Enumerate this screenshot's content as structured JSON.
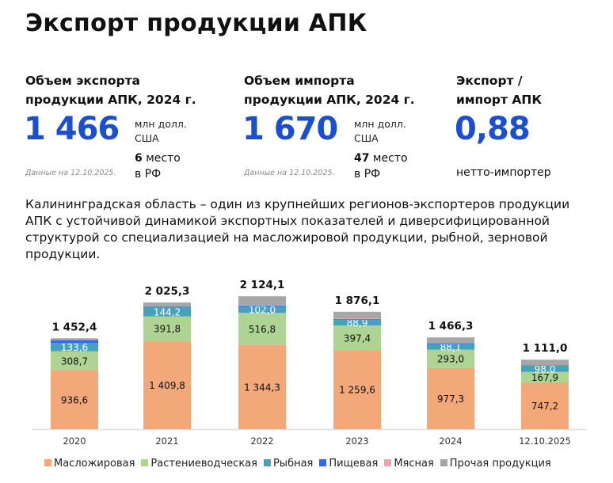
{
  "title": "Экспорт продукции АПК",
  "kpis": [
    {
      "heading_1": "Объем экспорта",
      "heading_2": "продукции АПК, 2024 г.",
      "value": "1 466",
      "unit_1": "млн долл.",
      "unit_2": "США",
      "rank_num": "6",
      "rank_1": " место",
      "rank_2": "в РФ",
      "note": "Данные на 12.10.2025."
    },
    {
      "heading_1": "Объем импорта",
      "heading_2": "продукции АПК, 2024 г.",
      "value": "1 670",
      "unit_1": "млн долл.",
      "unit_2": "США",
      "rank_num": "47",
      "rank_1": " место",
      "rank_2": "в РФ",
      "note": "Данные на 12.10.2025."
    },
    {
      "heading_1": "Экспорт /",
      "heading_2": "импорт АПК",
      "value": "0,88",
      "caption": "нетто-импортер"
    }
  ],
  "description": "Калининградская область – один из крупнейших регионов-экспортеров продукции АПК с устойчивой динамикой экспортных показателей и диверсифицированной структурой со специализацией на масложировой продукции, рыбной, зерновой продукции.",
  "chart_data": {
    "type": "bar",
    "stacked": true,
    "categories": [
      "2020",
      "2021",
      "2022",
      "2023",
      "2024",
      "12.10.2025"
    ],
    "totals": [
      "1 452,4",
      "2 025,3",
      "2 124,1",
      "1 876,1",
      "1 466,3",
      "1 111,0"
    ],
    "series": [
      {
        "name": "Масложировая",
        "color": "#f2a878",
        "values": [
          936.6,
          1409.8,
          1344.3,
          1259.6,
          977.3,
          747.2
        ],
        "labels": [
          "936,6",
          "1 409,8",
          "1 344,3",
          "1 259,6",
          "977,3",
          "747,2"
        ]
      },
      {
        "name": "Растениеводческая",
        "color": "#aed493",
        "values": [
          308.7,
          391.8,
          516.8,
          397.4,
          293.0,
          167.9
        ],
        "labels": [
          "308,7",
          "391,8",
          "516,8",
          "397,4",
          "293,0",
          "167,9"
        ]
      },
      {
        "name": "Рыбная",
        "color": "#44a2bd",
        "values": [
          133.6,
          144.2,
          102.0,
          88.9,
          88.1,
          98.0
        ],
        "labels": [
          "133,6",
          "144,2",
          "102,0",
          "88,9",
          "88,1",
          "98,0"
        ]
      },
      {
        "name": "Пищевая",
        "color": "#2f6af0",
        "values": [
          45,
          15,
          15,
          12,
          15,
          8
        ]
      },
      {
        "name": "Мясная",
        "color": "#f0a0ae",
        "values": [
          5,
          3,
          5,
          10,
          3,
          2
        ]
      },
      {
        "name": "Прочая продукция",
        "color": "#a6a6a6",
        "values": [
          23.5,
          61.5,
          141,
          108.2,
          89.9,
          87.9
        ]
      }
    ],
    "legend": "bottom",
    "grid": false
  }
}
